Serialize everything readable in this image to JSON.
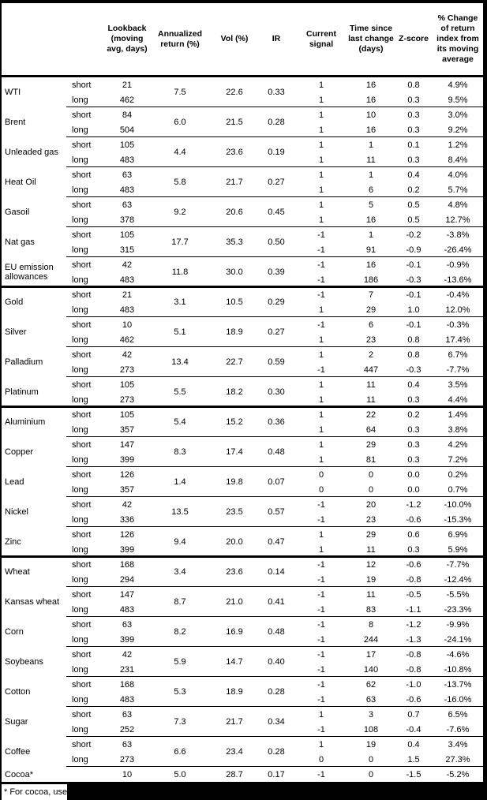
{
  "header": {
    "lookback": "Lookback (moving avg, days)",
    "ann": "Annualized return (%)",
    "vol": "Vol (%)",
    "ir": "IR",
    "signal": "Current signal",
    "time": "Time since last change (days)",
    "z": "Z-score",
    "pct": "% Change of return index from its moving average"
  },
  "row_labels": {
    "short": "short",
    "long": "long"
  },
  "commodities": [
    {
      "name": "WTI",
      "ann_return": "7.5",
      "vol": "22.6",
      "ir": "0.33",
      "section_start": false,
      "short": {
        "lookback": "21",
        "signal": "1",
        "time": "16",
        "z": "0.8",
        "pct": "4.9%"
      },
      "long": {
        "lookback": "462",
        "signal": "1",
        "time": "16",
        "z": "0.3",
        "pct": "9.5%"
      }
    },
    {
      "name": "Brent",
      "ann_return": "6.0",
      "vol": "21.5",
      "ir": "0.28",
      "section_start": false,
      "short": {
        "lookback": "84",
        "signal": "1",
        "time": "10",
        "z": "0.3",
        "pct": "3.0%"
      },
      "long": {
        "lookback": "504",
        "signal": "1",
        "time": "16",
        "z": "0.3",
        "pct": "9.2%"
      }
    },
    {
      "name": "Unleaded gas",
      "ann_return": "4.4",
      "vol": "23.6",
      "ir": "0.19",
      "section_start": false,
      "short": {
        "lookback": "105",
        "signal": "1",
        "time": "1",
        "z": "0.1",
        "pct": "1.2%"
      },
      "long": {
        "lookback": "483",
        "signal": "1",
        "time": "11",
        "z": "0.3",
        "pct": "8.4%"
      }
    },
    {
      "name": "Heat Oil",
      "ann_return": "5.8",
      "vol": "21.7",
      "ir": "0.27",
      "section_start": false,
      "short": {
        "lookback": "63",
        "signal": "1",
        "time": "1",
        "z": "0.4",
        "pct": "4.0%"
      },
      "long": {
        "lookback": "483",
        "signal": "1",
        "time": "6",
        "z": "0.2",
        "pct": "5.7%"
      }
    },
    {
      "name": "Gasoil",
      "ann_return": "9.2",
      "vol": "20.6",
      "ir": "0.45",
      "section_start": false,
      "short": {
        "lookback": "63",
        "signal": "1",
        "time": "5",
        "z": "0.5",
        "pct": "4.8%"
      },
      "long": {
        "lookback": "378",
        "signal": "1",
        "time": "16",
        "z": "0.5",
        "pct": "12.7%"
      }
    },
    {
      "name": "Nat gas",
      "ann_return": "17.7",
      "vol": "35.3",
      "ir": "0.50",
      "section_start": false,
      "short": {
        "lookback": "105",
        "signal": "-1",
        "time": "1",
        "z": "-0.2",
        "pct": "-3.8%"
      },
      "long": {
        "lookback": "315",
        "signal": "-1",
        "time": "91",
        "z": "-0.9",
        "pct": "-26.4%"
      }
    },
    {
      "name": "EU emission allowances",
      "ann_return": "11.8",
      "vol": "30.0",
      "ir": "0.39",
      "section_start": false,
      "short": {
        "lookback": "42",
        "signal": "-1",
        "time": "16",
        "z": "-0.1",
        "pct": "-0.9%"
      },
      "long": {
        "lookback": "483",
        "signal": "-1",
        "time": "186",
        "z": "-0.3",
        "pct": "-13.6%"
      }
    },
    {
      "name": "Gold",
      "ann_return": "3.1",
      "vol": "10.5",
      "ir": "0.29",
      "section_start": true,
      "short": {
        "lookback": "21",
        "signal": "-1",
        "time": "7",
        "z": "-0.1",
        "pct": "-0.4%"
      },
      "long": {
        "lookback": "483",
        "signal": "1",
        "time": "29",
        "z": "1.0",
        "pct": "12.0%"
      }
    },
    {
      "name": "Silver",
      "ann_return": "5.1",
      "vol": "18.9",
      "ir": "0.27",
      "section_start": false,
      "short": {
        "lookback": "10",
        "signal": "-1",
        "time": "6",
        "z": "-0.1",
        "pct": "-0.3%"
      },
      "long": {
        "lookback": "462",
        "signal": "1",
        "time": "23",
        "z": "0.8",
        "pct": "17.4%"
      }
    },
    {
      "name": "Palladium",
      "ann_return": "13.4",
      "vol": "22.7",
      "ir": "0.59",
      "section_start": false,
      "short": {
        "lookback": "42",
        "signal": "1",
        "time": "2",
        "z": "0.8",
        "pct": "6.7%"
      },
      "long": {
        "lookback": "273",
        "signal": "-1",
        "time": "447",
        "z": "-0.3",
        "pct": "-7.7%"
      }
    },
    {
      "name": "Platinum",
      "ann_return": "5.5",
      "vol": "18.2",
      "ir": "0.30",
      "section_start": false,
      "short": {
        "lookback": "105",
        "signal": "1",
        "time": "11",
        "z": "0.4",
        "pct": "3.5%"
      },
      "long": {
        "lookback": "273",
        "signal": "1",
        "time": "11",
        "z": "0.3",
        "pct": "4.4%"
      }
    },
    {
      "name": "Aluminium",
      "ann_return": "5.4",
      "vol": "15.2",
      "ir": "0.36",
      "section_start": true,
      "short": {
        "lookback": "105",
        "signal": "1",
        "time": "22",
        "z": "0.2",
        "pct": "1.4%"
      },
      "long": {
        "lookback": "357",
        "signal": "1",
        "time": "64",
        "z": "0.3",
        "pct": "3.8%"
      }
    },
    {
      "name": "Copper",
      "ann_return": "8.3",
      "vol": "17.4",
      "ir": "0.48",
      "section_start": false,
      "short": {
        "lookback": "147",
        "signal": "1",
        "time": "29",
        "z": "0.3",
        "pct": "4.2%"
      },
      "long": {
        "lookback": "399",
        "signal": "1",
        "time": "81",
        "z": "0.3",
        "pct": "7.2%"
      }
    },
    {
      "name": "Lead",
      "ann_return": "1.4",
      "vol": "19.8",
      "ir": "0.07",
      "section_start": false,
      "short": {
        "lookback": "126",
        "signal": "0",
        "time": "0",
        "z": "0.0",
        "pct": "0.2%"
      },
      "long": {
        "lookback": "357",
        "signal": "0",
        "time": "0",
        "z": "0.0",
        "pct": "0.7%"
      }
    },
    {
      "name": "Nickel",
      "ann_return": "13.5",
      "vol": "23.5",
      "ir": "0.57",
      "section_start": false,
      "short": {
        "lookback": "42",
        "signal": "-1",
        "time": "20",
        "z": "-1.2",
        "pct": "-10.0%"
      },
      "long": {
        "lookback": "336",
        "signal": "-1",
        "time": "23",
        "z": "-0.6",
        "pct": "-15.3%"
      }
    },
    {
      "name": "Zinc",
      "ann_return": "9.4",
      "vol": "20.0",
      "ir": "0.47",
      "section_start": false,
      "short": {
        "lookback": "126",
        "signal": "1",
        "time": "29",
        "z": "0.6",
        "pct": "6.9%"
      },
      "long": {
        "lookback": "399",
        "signal": "1",
        "time": "11",
        "z": "0.3",
        "pct": "5.9%"
      }
    },
    {
      "name": "Wheat",
      "ann_return": "3.4",
      "vol": "23.6",
      "ir": "0.14",
      "section_start": true,
      "short": {
        "lookback": "168",
        "signal": "-1",
        "time": "12",
        "z": "-0.6",
        "pct": "-7.7%"
      },
      "long": {
        "lookback": "294",
        "signal": "-1",
        "time": "19",
        "z": "-0.8",
        "pct": "-12.4%"
      }
    },
    {
      "name": "Kansas wheat",
      "ann_return": "8.7",
      "vol": "21.0",
      "ir": "0.41",
      "section_start": false,
      "short": {
        "lookback": "147",
        "signal": "-1",
        "time": "11",
        "z": "-0.5",
        "pct": "-5.5%"
      },
      "long": {
        "lookback": "483",
        "signal": "-1",
        "time": "83",
        "z": "-1.1",
        "pct": "-23.3%"
      }
    },
    {
      "name": "Corn",
      "ann_return": "8.2",
      "vol": "16.9",
      "ir": "0.48",
      "section_start": false,
      "short": {
        "lookback": "63",
        "signal": "-1",
        "time": "8",
        "z": "-1.2",
        "pct": "-9.9%"
      },
      "long": {
        "lookback": "399",
        "signal": "-1",
        "time": "244",
        "z": "-1.3",
        "pct": "-24.1%"
      }
    },
    {
      "name": "Soybeans",
      "ann_return": "5.9",
      "vol": "14.7",
      "ir": "0.40",
      "section_start": false,
      "short": {
        "lookback": "42",
        "signal": "-1",
        "time": "17",
        "z": "-0.8",
        "pct": "-4.6%"
      },
      "long": {
        "lookback": "231",
        "signal": "-1",
        "time": "140",
        "z": "-0.8",
        "pct": "-10.8%"
      }
    },
    {
      "name": "Cotton",
      "ann_return": "5.3",
      "vol": "18.9",
      "ir": "0.28",
      "section_start": false,
      "short": {
        "lookback": "168",
        "signal": "-1",
        "time": "62",
        "z": "-1.0",
        "pct": "-13.7%"
      },
      "long": {
        "lookback": "483",
        "signal": "-1",
        "time": "63",
        "z": "-0.6",
        "pct": "-16.0%"
      }
    },
    {
      "name": "Sugar",
      "ann_return": "7.3",
      "vol": "21.7",
      "ir": "0.34",
      "section_start": false,
      "short": {
        "lookback": "63",
        "signal": "1",
        "time": "3",
        "z": "0.7",
        "pct": "6.5%"
      },
      "long": {
        "lookback": "252",
        "signal": "-1",
        "time": "108",
        "z": "-0.4",
        "pct": "-7.6%"
      }
    },
    {
      "name": "Coffee",
      "ann_return": "6.6",
      "vol": "23.4",
      "ir": "0.28",
      "section_start": false,
      "short": {
        "lookback": "63",
        "signal": "1",
        "time": "19",
        "z": "0.4",
        "pct": "3.4%"
      },
      "long": {
        "lookback": "273",
        "signal": "0",
        "time": "0",
        "z": "1.5",
        "pct": "27.3%"
      }
    },
    {
      "name": "Cocoa*",
      "ann_return": "5.0",
      "vol": "28.7",
      "ir": "0.17",
      "section_start": false,
      "single": {
        "lookback": "10",
        "signal": "-1",
        "time": "0",
        "z": "-1.5",
        "pct": "-5.2%"
      }
    }
  ],
  "footnote": "* For cocoa, uses o"
}
